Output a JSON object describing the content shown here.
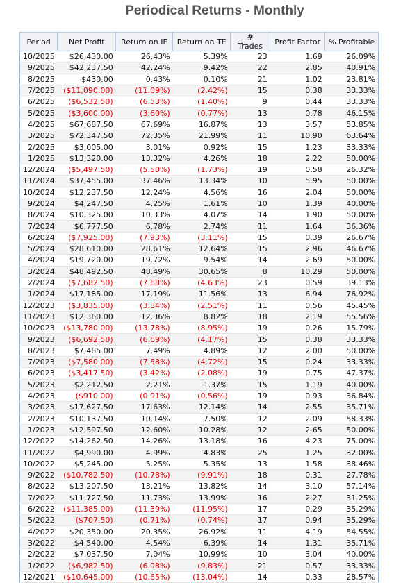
{
  "title": "Periodical Returns - Monthly",
  "columns": [
    "Period",
    "Net Profit",
    "Return on IE",
    "Return on TE",
    "# Trades",
    "Profit Factor",
    "% Profitable"
  ],
  "rows": [
    [
      "10/2025",
      "$26,430.00",
      "26.43%",
      "5.39%",
      "23",
      "1.69",
      "26.09%"
    ],
    [
      "9/2025",
      "$42,237.50",
      "42.24%",
      "9.42%",
      "22",
      "2.85",
      "40.91%"
    ],
    [
      "8/2025",
      "$430.00",
      "0.43%",
      "0.10%",
      "21",
      "1.02",
      "23.81%"
    ],
    [
      "7/2025",
      "($11,090.00)",
      "(11.09%)",
      "(2.42%)",
      "15",
      "0.38",
      "33.33%"
    ],
    [
      "6/2025",
      "($6,532.50)",
      "(6.53%)",
      "(1.40%)",
      "9",
      "0.44",
      "33.33%"
    ],
    [
      "5/2025",
      "($3,600.00)",
      "(3.60%)",
      "(0.77%)",
      "13",
      "0.78",
      "46.15%"
    ],
    [
      "4/2025",
      "$67,687.50",
      "67.69%",
      "16.87%",
      "13",
      "3.57",
      "53.85%"
    ],
    [
      "3/2025",
      "$72,347.50",
      "72.35%",
      "21.99%",
      "11",
      "10.90",
      "63.64%"
    ],
    [
      "2/2025",
      "$3,005.00",
      "3.01%",
      "0.92%",
      "15",
      "1.23",
      "33.33%"
    ],
    [
      "1/2025",
      "$13,320.00",
      "13.32%",
      "4.26%",
      "18",
      "2.22",
      "50.00%"
    ],
    [
      "12/2024",
      "($5,497.50)",
      "(5.50%)",
      "(1.73%)",
      "19",
      "0.58",
      "26.32%"
    ],
    [
      "11/2024",
      "$37,455.00",
      "37.46%",
      "13.34%",
      "10",
      "5.95",
      "50.00%"
    ],
    [
      "10/2024",
      "$12,237.50",
      "12.24%",
      "4.56%",
      "16",
      "2.04",
      "50.00%"
    ],
    [
      "9/2024",
      "$4,247.50",
      "4.25%",
      "1.61%",
      "10",
      "1.39",
      "40.00%"
    ],
    [
      "8/2024",
      "$10,325.00",
      "10.33%",
      "4.07%",
      "14",
      "1.90",
      "50.00%"
    ],
    [
      "7/2024",
      "$6,777.50",
      "6.78%",
      "2.74%",
      "11",
      "1.64",
      "36.36%"
    ],
    [
      "6/2024",
      "($7,925.00)",
      "(7.93%)",
      "(3.11%)",
      "15",
      "0.39",
      "26.67%"
    ],
    [
      "5/2024",
      "$28,610.00",
      "28.61%",
      "12.64%",
      "15",
      "2.96",
      "46.67%"
    ],
    [
      "4/2024",
      "$19,720.00",
      "19.72%",
      "9.54%",
      "14",
      "2.69",
      "50.00%"
    ],
    [
      "3/2024",
      "$48,492.50",
      "48.49%",
      "30.65%",
      "8",
      "10.29",
      "50.00%"
    ],
    [
      "2/2024",
      "($7,682.50)",
      "(7.68%)",
      "(4.63%)",
      "23",
      "0.59",
      "39.13%"
    ],
    [
      "1/2024",
      "$17,185.00",
      "17.19%",
      "11.56%",
      "13",
      "6.94",
      "76.92%"
    ],
    [
      "12/2023",
      "($3,835.00)",
      "(3.84%)",
      "(2.51%)",
      "11",
      "0.56",
      "45.45%"
    ],
    [
      "11/2023",
      "$12,360.00",
      "12.36%",
      "8.82%",
      "18",
      "2.19",
      "55.56%"
    ],
    [
      "10/2023",
      "($13,780.00)",
      "(13.78%)",
      "(8.95%)",
      "19",
      "0.26",
      "15.79%"
    ],
    [
      "9/2023",
      "($6,692.50)",
      "(6.69%)",
      "(4.17%)",
      "15",
      "0.38",
      "33.33%"
    ],
    [
      "8/2023",
      "$7,485.00",
      "7.49%",
      "4.89%",
      "12",
      "2.00",
      "50.00%"
    ],
    [
      "7/2023",
      "($7,580.00)",
      "(7.58%)",
      "(4.72%)",
      "15",
      "0.24",
      "33.33%"
    ],
    [
      "6/2023",
      "($3,417.50)",
      "(3.42%)",
      "(2.08%)",
      "19",
      "0.75",
      "47.37%"
    ],
    [
      "5/2023",
      "$2,212.50",
      "2.21%",
      "1.37%",
      "15",
      "1.19",
      "40.00%"
    ],
    [
      "4/2023",
      "($910.00)",
      "(0.91%)",
      "(0.56%)",
      "19",
      "0.93",
      "36.84%"
    ],
    [
      "3/2023",
      "$17,627.50",
      "17.63%",
      "12.14%",
      "14",
      "2.55",
      "35.71%"
    ],
    [
      "2/2023",
      "$10,137.50",
      "10.14%",
      "7.50%",
      "12",
      "2.09",
      "58.33%"
    ],
    [
      "1/2023",
      "$12,597.50",
      "12.60%",
      "10.28%",
      "12",
      "2.65",
      "50.00%"
    ],
    [
      "12/2022",
      "$14,262.50",
      "14.26%",
      "13.18%",
      "16",
      "4.23",
      "75.00%"
    ],
    [
      "11/2022",
      "$4,990.00",
      "4.99%",
      "4.83%",
      "25",
      "1.25",
      "32.00%"
    ],
    [
      "10/2022",
      "$5,245.00",
      "5.25%",
      "5.35%",
      "13",
      "1.58",
      "38.46%"
    ],
    [
      "9/2022",
      "($10,782.50)",
      "(10.78%)",
      "(9.91%)",
      "18",
      "0.31",
      "27.78%"
    ],
    [
      "8/2022",
      "$13,207.50",
      "13.21%",
      "13.82%",
      "14",
      "3.10",
      "57.14%"
    ],
    [
      "7/2022",
      "$11,727.50",
      "11.73%",
      "13.99%",
      "16",
      "2.27",
      "31.25%"
    ],
    [
      "6/2022",
      "($11,385.00)",
      "(11.39%)",
      "(11.95%)",
      "17",
      "0.29",
      "35.29%"
    ],
    [
      "5/2022",
      "($707.50)",
      "(0.71%)",
      "(0.74%)",
      "17",
      "0.94",
      "35.29%"
    ],
    [
      "4/2022",
      "$20,350.00",
      "20.35%",
      "26.92%",
      "11",
      "4.19",
      "54.55%"
    ],
    [
      "3/2022",
      "$4,540.00",
      "4.54%",
      "6.39%",
      "14",
      "1.31",
      "35.71%"
    ],
    [
      "2/2022",
      "$7,037.50",
      "7.04%",
      "10.99%",
      "10",
      "3.04",
      "40.00%"
    ],
    [
      "1/2022",
      "($6,982.50)",
      "(6.98%)",
      "(9.83%)",
      "21",
      "0.57",
      "33.33%"
    ],
    [
      "12/2021",
      "($10,645.00)",
      "(10.65%)",
      "(13.04%)",
      "14",
      "0.33",
      "28.57%"
    ]
  ],
  "colors": {
    "negative": "#e00000",
    "header_bg": "#f0f2f6",
    "border": "#8fb0d6",
    "title": "#555555"
  }
}
